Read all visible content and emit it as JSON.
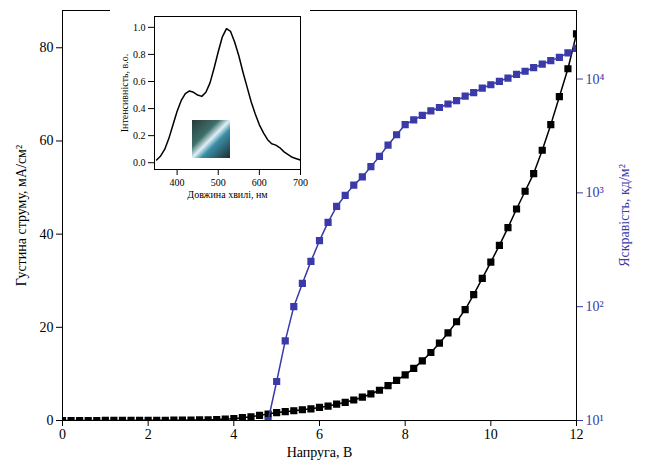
{
  "chart_data": [
    {
      "type": "line",
      "xlabel": "Напруга, В",
      "ylabel": "Густина струму, мА/см²",
      "y2label": "Яскравість, кд/м²",
      "x": [
        0,
        0.2,
        0.4,
        0.6,
        0.8,
        1.0,
        1.2,
        1.4,
        1.6,
        1.8,
        2.0,
        2.2,
        2.4,
        2.6,
        2.8,
        3.0,
        3.2,
        3.4,
        3.6,
        3.8,
        4.0,
        4.2,
        4.4,
        4.6,
        4.8,
        5.0,
        5.2,
        5.4,
        5.6,
        5.8,
        6.0,
        6.2,
        6.4,
        6.6,
        6.8,
        7.0,
        7.2,
        7.4,
        7.6,
        7.8,
        8.0,
        8.2,
        8.4,
        8.6,
        8.8,
        9.0,
        9.2,
        9.4,
        9.6,
        9.8,
        10.0,
        10.2,
        10.4,
        10.6,
        10.8,
        11.0,
        11.2,
        11.4,
        11.6,
        11.8,
        12.0
      ],
      "xlim": [
        0,
        12
      ],
      "xticks": [
        0,
        2,
        4,
        6,
        8,
        10,
        12
      ],
      "ylim": [
        0,
        88
      ],
      "yticks": [
        0,
        20,
        40,
        60,
        80
      ],
      "y2lim": [
        10,
        40000
      ],
      "y2ticks": [
        {
          "value": 10,
          "label": "10¹"
        },
        {
          "value": 100,
          "label": "10²"
        },
        {
          "value": 1000,
          "label": "10³"
        },
        {
          "value": 10000,
          "label": "10⁴"
        }
      ],
      "log": "y2",
      "grid": false,
      "series": [
        {
          "color": "#000000",
          "marker": "square",
          "line_style": "solid",
          "values": [
            0,
            0,
            0,
            0,
            0,
            0.01,
            0.01,
            0.02,
            0.02,
            0.03,
            0.04,
            0.05,
            0.06,
            0.07,
            0.08,
            0.1,
            0.12,
            0.15,
            0.2,
            0.3,
            0.4,
            0.6,
            0.8,
            1.1,
            1.4,
            1.7,
            1.9,
            2.1,
            2.3,
            2.5,
            2.8,
            3.1,
            3.5,
            3.9,
            4.4,
            5.0,
            5.7,
            6.5,
            7.5,
            8.6,
            9.8,
            11.2,
            12.8,
            14.6,
            16.6,
            18.8,
            21.2,
            23.8,
            27,
            30.5,
            34,
            37.6,
            41.4,
            45.4,
            49.2,
            53,
            58,
            63.5,
            69.5,
            75.5,
            83
          ]
        },
        {
          "color": "#3a3aa8",
          "marker": "square",
          "line_style": "solid",
          "axis": "y2",
          "values": [
            null,
            null,
            null,
            null,
            null,
            null,
            null,
            null,
            null,
            null,
            null,
            null,
            null,
            null,
            null,
            null,
            null,
            null,
            null,
            null,
            null,
            null,
            null,
            null,
            10,
            22,
            50,
            100,
            160,
            250,
            380,
            550,
            760,
            950,
            1170,
            1380,
            1700,
            2090,
            2630,
            3240,
            3980,
            4370,
            4790,
            5250,
            5620,
            6030,
            6460,
            7080,
            7590,
            8320,
            8910,
            9550,
            10200,
            11000,
            11700,
            12600,
            13500,
            14500,
            15500,
            17000,
            18600
          ]
        }
      ]
    },
    {
      "type": "line",
      "xlabel": "Довжина хвилі, нм",
      "ylabel": "Інтенсивність, в.о.",
      "x": [
        350,
        360,
        370,
        380,
        390,
        400,
        410,
        420,
        430,
        440,
        450,
        460,
        470,
        480,
        490,
        500,
        510,
        520,
        530,
        540,
        550,
        560,
        570,
        580,
        590,
        600,
        610,
        620,
        630,
        640,
        650,
        660,
        670,
        680,
        690,
        700
      ],
      "xlim": [
        345,
        700
      ],
      "xticks": [
        400,
        500,
        600,
        700
      ],
      "ylim": [
        -0.05,
        1.08
      ],
      "yticks": [
        {
          "value": 0,
          "label": "0.0"
        },
        {
          "value": 0.2,
          "label": "0.2"
        },
        {
          "value": 0.4,
          "label": "0.4"
        },
        {
          "value": 0.6,
          "label": "0.6"
        },
        {
          "value": 0.8,
          "label": "0.8"
        },
        {
          "value": 1.0,
          "label": "1.0"
        }
      ],
      "grid": false,
      "series": [
        {
          "color": "#000000",
          "line_style": "solid",
          "values": [
            0.02,
            0.05,
            0.1,
            0.18,
            0.28,
            0.38,
            0.46,
            0.51,
            0.53,
            0.52,
            0.5,
            0.49,
            0.52,
            0.59,
            0.7,
            0.82,
            0.93,
            0.99,
            0.97,
            0.89,
            0.79,
            0.67,
            0.56,
            0.45,
            0.36,
            0.28,
            0.22,
            0.17,
            0.14,
            0.13,
            0.11,
            0.08,
            0.06,
            0.04,
            0.03,
            0.02
          ]
        }
      ]
    }
  ]
}
